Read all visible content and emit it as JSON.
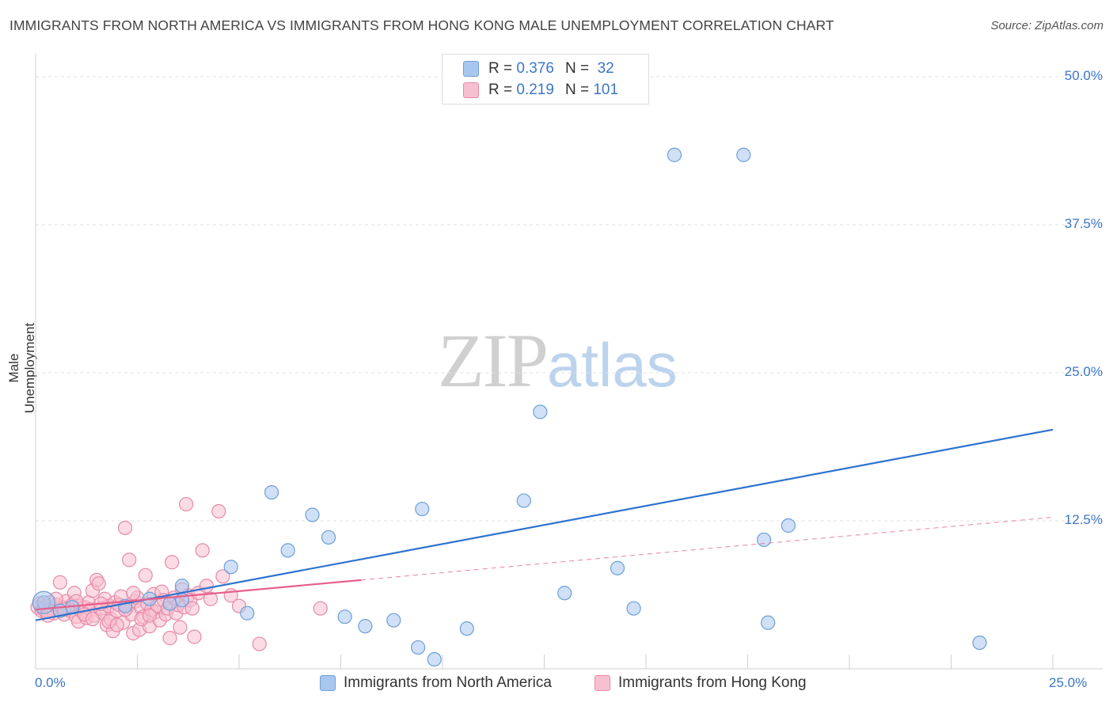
{
  "title": "IMMIGRANTS FROM NORTH AMERICA VS IMMIGRANTS FROM HONG KONG MALE UNEMPLOYMENT CORRELATION CHART",
  "source": "Source: ZipAtlas.com",
  "watermark": {
    "zip": "ZIP",
    "atlas": "atlas"
  },
  "legend": {
    "rows": [
      {
        "r_label": "R = ",
        "r_value": "0.376",
        "n_label": "N = ",
        "n_value": "32",
        "color": "#a9c7ee",
        "border": "#6e9fd8"
      },
      {
        "r_label": "R = ",
        "r_value": "0.219",
        "n_label": "N = ",
        "n_value": "101",
        "color": "#f7c0d0",
        "border": "#e68aa6"
      }
    ]
  },
  "chart_data": {
    "type": "scatter",
    "title": "IMMIGRANTS FROM NORTH AMERICA VS IMMIGRANTS FROM HONG KONG MALE UNEMPLOYMENT CORRELATION CHART",
    "xlabel": "",
    "ylabel": "Male Unemployment",
    "xlim": [
      0,
      25
    ],
    "ylim": [
      0,
      52
    ],
    "x_tick_labels": [
      "0.0%",
      "25.0%"
    ],
    "y_ticks": [
      12.5,
      25.0,
      37.5,
      50.0
    ],
    "y_tick_labels": [
      "12.5%",
      "25.0%",
      "37.5%",
      "50.0%"
    ],
    "grid": true,
    "legend_position": "top-center",
    "series": [
      {
        "name": "Immigrants from North America",
        "color": "#a9c7ee",
        "stroke": "#6e9fd8",
        "line_color": "#2f72cf",
        "trend": {
          "x": [
            0,
            25
          ],
          "y": [
            4.1,
            20.2
          ],
          "dashed_from": null
        },
        "points": [
          [
            0.2,
            5.6
          ],
          [
            0.6,
            4.9
          ],
          [
            2.2,
            5.3
          ],
          [
            2.8,
            5.9
          ],
          [
            3.3,
            5.5
          ],
          [
            3.6,
            7.0
          ],
          [
            3.6,
            5.8
          ],
          [
            4.8,
            8.6
          ],
          [
            5.2,
            4.7
          ],
          [
            5.8,
            14.9
          ],
          [
            6.2,
            10.0
          ],
          [
            6.8,
            13.0
          ],
          [
            7.2,
            11.1
          ],
          [
            7.6,
            4.4
          ],
          [
            8.1,
            3.6
          ],
          [
            8.8,
            4.1
          ],
          [
            9.4,
            1.8
          ],
          [
            9.5,
            13.5
          ],
          [
            9.8,
            0.8
          ],
          [
            10.6,
            3.4
          ],
          [
            12.0,
            14.2
          ],
          [
            12.4,
            21.7
          ],
          [
            13.0,
            6.4
          ],
          [
            14.3,
            8.5
          ],
          [
            14.7,
            5.1
          ],
          [
            15.7,
            43.4
          ],
          [
            17.4,
            43.4
          ],
          [
            17.9,
            10.9
          ],
          [
            18.0,
            3.9
          ],
          [
            18.5,
            12.1
          ],
          [
            23.2,
            2.2
          ],
          [
            0.9,
            5.2
          ]
        ]
      },
      {
        "name": "Immigrants from Hong Kong",
        "color": "#f7c0d0",
        "stroke": "#e68aa6",
        "line_color": "#e6608a",
        "trend": {
          "x": [
            0,
            25
          ],
          "y": [
            5.0,
            12.8
          ],
          "solid_to": 8.0
        },
        "points": [
          [
            0.05,
            5.2
          ],
          [
            0.1,
            5.5
          ],
          [
            0.15,
            4.9
          ],
          [
            0.2,
            5.0
          ],
          [
            0.25,
            5.3
          ],
          [
            0.3,
            4.8
          ],
          [
            0.35,
            5.6
          ],
          [
            0.4,
            5.1
          ],
          [
            0.45,
            4.7
          ],
          [
            0.5,
            5.4
          ],
          [
            0.55,
            5.0
          ],
          [
            0.6,
            7.3
          ],
          [
            0.65,
            5.2
          ],
          [
            0.7,
            4.6
          ],
          [
            0.75,
            5.7
          ],
          [
            0.8,
            5.1
          ],
          [
            0.85,
            4.9
          ],
          [
            0.9,
            5.4
          ],
          [
            0.95,
            6.4
          ],
          [
            1.0,
            4.4
          ],
          [
            1.05,
            4.0
          ],
          [
            1.1,
            5.3
          ],
          [
            1.15,
            4.8
          ],
          [
            1.2,
            5.2
          ],
          [
            1.25,
            4.3
          ],
          [
            1.3,
            5.6
          ],
          [
            1.35,
            5.0
          ],
          [
            1.4,
            6.6
          ],
          [
            1.45,
            4.5
          ],
          [
            1.5,
            7.5
          ],
          [
            1.55,
            7.2
          ],
          [
            1.6,
            5.1
          ],
          [
            1.65,
            4.7
          ],
          [
            1.7,
            5.9
          ],
          [
            1.75,
            3.7
          ],
          [
            1.8,
            5.3
          ],
          [
            1.85,
            4.2
          ],
          [
            1.9,
            3.2
          ],
          [
            1.95,
            5.6
          ],
          [
            2.0,
            4.9
          ],
          [
            2.05,
            5.4
          ],
          [
            2.1,
            6.1
          ],
          [
            2.15,
            3.9
          ],
          [
            2.2,
            11.9
          ],
          [
            2.25,
            5.2
          ],
          [
            2.3,
            9.2
          ],
          [
            2.35,
            4.6
          ],
          [
            2.4,
            3.0
          ],
          [
            2.45,
            5.7
          ],
          [
            2.5,
            6.0
          ],
          [
            2.55,
            3.3
          ],
          [
            2.6,
            5.1
          ],
          [
            2.65,
            4.4
          ],
          [
            2.7,
            7.9
          ],
          [
            2.75,
            5.5
          ],
          [
            2.8,
            3.6
          ],
          [
            2.85,
            5.0
          ],
          [
            2.9,
            6.3
          ],
          [
            2.95,
            4.8
          ],
          [
            3.0,
            5.3
          ],
          [
            3.05,
            4.1
          ],
          [
            3.1,
            6.5
          ],
          [
            3.15,
            5.8
          ],
          [
            3.2,
            4.6
          ],
          [
            3.25,
            5.1
          ],
          [
            3.3,
            2.6
          ],
          [
            3.35,
            9.0
          ],
          [
            3.4,
            6.0
          ],
          [
            3.45,
            4.7
          ],
          [
            3.5,
            5.4
          ],
          [
            3.55,
            3.5
          ],
          [
            3.6,
            6.7
          ],
          [
            3.65,
            5.2
          ],
          [
            3.7,
            13.9
          ],
          [
            3.75,
            6.2
          ],
          [
            3.8,
            5.8
          ],
          [
            3.85,
            5.1
          ],
          [
            3.9,
            2.7
          ],
          [
            4.0,
            6.4
          ],
          [
            4.1,
            10.0
          ],
          [
            4.2,
            7.0
          ],
          [
            4.3,
            5.9
          ],
          [
            4.5,
            13.3
          ],
          [
            4.6,
            7.8
          ],
          [
            4.8,
            6.2
          ],
          [
            5.0,
            5.3
          ],
          [
            5.5,
            2.1
          ],
          [
            7.0,
            5.1
          ],
          [
            0.3,
            4.5
          ],
          [
            0.5,
            5.9
          ],
          [
            0.7,
            5.0
          ],
          [
            1.0,
            5.7
          ],
          [
            1.2,
            4.6
          ],
          [
            1.4,
            4.2
          ],
          [
            1.6,
            5.5
          ],
          [
            1.8,
            4.0
          ],
          [
            2.0,
            3.7
          ],
          [
            2.2,
            5.0
          ],
          [
            2.4,
            6.4
          ],
          [
            2.6,
            4.2
          ],
          [
            2.8,
            4.5
          ]
        ]
      }
    ]
  },
  "bottom_legend": [
    {
      "label": "Immigrants from North America",
      "color": "#a9c7ee",
      "border": "#6e9fd8"
    },
    {
      "label": "Immigrants from Hong Kong",
      "color": "#f7c0d0",
      "border": "#e68aa6"
    }
  ]
}
